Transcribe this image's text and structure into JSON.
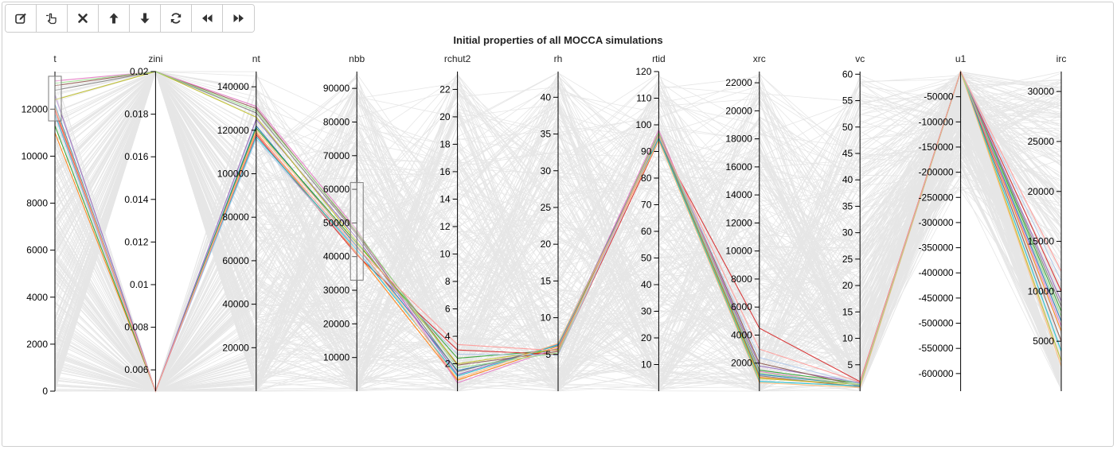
{
  "toolbar": {
    "buttons": [
      {
        "id": "edit",
        "icon": "edit-icon"
      },
      {
        "id": "select",
        "icon": "hand-pointer-icon"
      },
      {
        "id": "remove",
        "icon": "close-icon"
      },
      {
        "id": "up",
        "icon": "arrow-up-icon"
      },
      {
        "id": "down",
        "icon": "arrow-down-icon"
      },
      {
        "id": "refresh",
        "icon": "refresh-icon"
      },
      {
        "id": "backward",
        "icon": "fast-backward-icon"
      },
      {
        "id": "forward",
        "icon": "fast-forward-icon"
      }
    ]
  },
  "colors": {
    "background_lines": "#e6e6e6",
    "axis": "#000000",
    "brush_border": "#7a7a7a",
    "palette": [
      "#1f77b4",
      "#ff7f0e",
      "#2ca02c",
      "#d62728",
      "#9467bd",
      "#8c564b",
      "#e377c2",
      "#7f7f7f",
      "#bcbd22",
      "#17becf",
      "#aec7e8",
      "#ffbb78",
      "#98df8a",
      "#ff9896"
    ]
  },
  "chart_data": {
    "type": "parallel_coordinates",
    "title": "Initial properties of all MOCCA simulations",
    "axes": [
      {
        "name": "t",
        "domain": [
          0,
          13600
        ],
        "ticks": [
          0,
          2000,
          4000,
          6000,
          8000,
          10000,
          12000
        ],
        "tick_labels": [
          "0",
          "2000",
          "4000",
          "6000",
          "8000",
          "10000",
          "12000"
        ],
        "brush": [
          11500,
          13400
        ]
      },
      {
        "name": "zini",
        "domain": [
          0.005,
          0.02
        ],
        "ticks": [
          0.006,
          0.008,
          0.01,
          0.012,
          0.014,
          0.016,
          0.018,
          0.02
        ],
        "tick_labels": [
          "0.006",
          "0.008",
          "0.01",
          "0.012",
          "0.014",
          "0.016",
          "0.018",
          "0.02"
        ]
      },
      {
        "name": "nt",
        "domain": [
          0,
          147000
        ],
        "ticks": [
          20000,
          40000,
          60000,
          80000,
          100000,
          120000,
          140000
        ],
        "tick_labels": [
          "20000",
          "40000",
          "60000",
          "80000",
          "100000",
          "120000",
          "140000"
        ]
      },
      {
        "name": "nbb",
        "domain": [
          0,
          95000
        ],
        "ticks": [
          10000,
          20000,
          30000,
          40000,
          50000,
          60000,
          70000,
          80000,
          90000
        ],
        "tick_labels": [
          "10000",
          "20000",
          "30000",
          "40000",
          "50000",
          "60000",
          "70000",
          "80000",
          "90000"
        ],
        "brush": [
          33000,
          62000
        ]
      },
      {
        "name": "rchut2",
        "domain": [
          0,
          23.3
        ],
        "ticks": [
          2,
          4,
          6,
          8,
          10,
          12,
          14,
          16,
          18,
          20,
          22
        ],
        "tick_labels": [
          "2",
          "4",
          "6",
          "8",
          "10",
          "12",
          "14",
          "16",
          "18",
          "20",
          "22"
        ]
      },
      {
        "name": "rh",
        "domain": [
          0,
          43.5
        ],
        "ticks": [
          5,
          10,
          15,
          20,
          25,
          30,
          35,
          40
        ],
        "tick_labels": [
          "5",
          "10",
          "15",
          "20",
          "25",
          "30",
          "35",
          "40"
        ]
      },
      {
        "name": "rtid",
        "domain": [
          0,
          120
        ],
        "ticks": [
          10,
          20,
          30,
          40,
          50,
          60,
          70,
          80,
          90,
          100,
          110,
          120
        ],
        "tick_labels": [
          "10",
          "20",
          "30",
          "40",
          "50",
          "60",
          "70",
          "80",
          "90",
          "100",
          "110",
          "120"
        ]
      },
      {
        "name": "xrc",
        "domain": [
          0,
          22800
        ],
        "ticks": [
          2000,
          4000,
          6000,
          8000,
          10000,
          12000,
          14000,
          16000,
          18000,
          20000,
          22000
        ],
        "tick_labels": [
          "2000",
          "4000",
          "6000",
          "8000",
          "10000",
          "12000",
          "14000",
          "16000",
          "18000",
          "20000",
          "22000"
        ]
      },
      {
        "name": "vc",
        "domain": [
          0,
          60.5
        ],
        "ticks": [
          5,
          10,
          15,
          20,
          25,
          30,
          35,
          40,
          45,
          50,
          55,
          60
        ],
        "tick_labels": [
          "5",
          "10",
          "15",
          "20",
          "25",
          "30",
          "35",
          "40",
          "45",
          "50",
          "55",
          "60"
        ]
      },
      {
        "name": "u1",
        "domain": [
          -635000,
          0
        ],
        "ticks": [
          -600000,
          -550000,
          -500000,
          -450000,
          -400000,
          -350000,
          -300000,
          -250000,
          -200000,
          -150000,
          -100000,
          -50000
        ],
        "tick_labels": [
          "-600000",
          "-550000",
          "-500000",
          "-450000",
          "-400000",
          "-350000",
          "-300000",
          "-250000",
          "-200000",
          "-150000",
          "-100000",
          "-50000"
        ]
      },
      {
        "name": "irc",
        "domain": [
          0,
          32000
        ],
        "ticks": [
          5000,
          10000,
          15000,
          20000,
          25000,
          30000
        ],
        "tick_labels": [
          "5000",
          "10000",
          "15000",
          "20000",
          "25000",
          "30000"
        ]
      }
    ],
    "highlighted_series": [
      {
        "values": [
          12200,
          0.005,
          122000,
          43000,
          1.5,
          5.8,
          95,
          1200,
          1.2,
          0,
          7000
        ]
      },
      {
        "values": [
          11000,
          0.005,
          119000,
          41000,
          0.8,
          6.1,
          96,
          1000,
          0.9,
          0,
          6000
        ]
      },
      {
        "values": [
          11300,
          0.005,
          121000,
          44000,
          2.4,
          5.6,
          97,
          1500,
          1.5,
          0,
          8000
        ]
      },
      {
        "values": [
          12000,
          0.005,
          118000,
          40500,
          3.0,
          5.0,
          94,
          4500,
          1.8,
          0,
          10000
        ]
      },
      {
        "values": [
          12600,
          0.005,
          125000,
          45500,
          1.2,
          6.4,
          96,
          1800,
          1.6,
          0,
          9000
        ]
      },
      {
        "values": [
          13000,
          0.02,
          130000,
          47000,
          1.9,
          5.4,
          97,
          2000,
          1.0,
          0,
          5000
        ]
      },
      {
        "values": [
          13200,
          0.02,
          131000,
          48000,
          0.6,
          5.9,
          98,
          1400,
          1.1,
          0,
          6500
        ]
      },
      {
        "values": [
          12800,
          0.02,
          128000,
          46500,
          1.4,
          6.2,
          96,
          1100,
          0.8,
          0,
          8500
        ]
      },
      {
        "values": [
          12400,
          0.02,
          126000,
          44500,
          2.0,
          5.7,
          95,
          900,
          1.3,
          0,
          3000
        ]
      },
      {
        "values": [
          11800,
          0.005,
          117000,
          42000,
          1.1,
          6.3,
          95,
          700,
          1.0,
          0,
          4000
        ]
      },
      {
        "values": [
          11700,
          0.005,
          116000,
          41500,
          2.7,
          4.9,
          96,
          2400,
          1.4,
          0,
          11000
        ]
      },
      {
        "values": [
          12100,
          0.005,
          120000,
          43500,
          0.9,
          6.5,
          94,
          600,
          0.7,
          0,
          2500
        ]
      },
      {
        "values": [
          13100,
          0.02,
          129000,
          47500,
          1.7,
          5.2,
          97,
          1300,
          1.2,
          0,
          7500
        ]
      },
      {
        "values": [
          11900,
          0.005,
          118500,
          42500,
          3.4,
          5.5,
          96,
          3000,
          1.7,
          0,
          12000
        ]
      }
    ]
  }
}
